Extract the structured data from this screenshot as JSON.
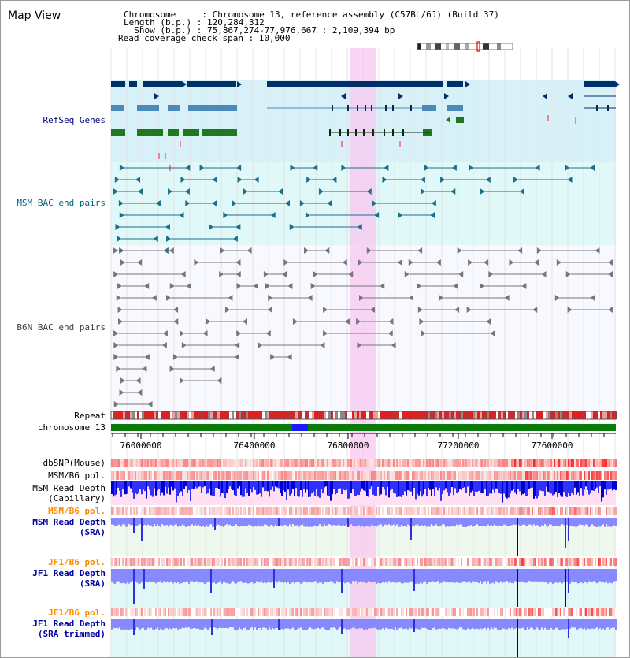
{
  "header": {
    "title": "Map View",
    "info_lines": [
      "Chromosome     : Chromosome 13, reference assembly (C57BL/6J) (Build 37)",
      "Length (b.p.) : 120,284,312",
      "  Show (b.p.) : 75,867,274-77,976,667 : 2,109,394 bp",
      "Read coverage check span : 10,000"
    ]
  },
  "tracks": {
    "refseq": "RefSeq Genes",
    "msm_bac": "MSM BAC end pairs",
    "b6n_bac": "B6N BAC end pairs",
    "repeat": "Repeat",
    "chromosome": "chromosome 13",
    "dbsnp": "dbSNP(Mouse)",
    "msm_b6_pol_1": "MSM/B6 pol.",
    "msm_depth_cap_1": "MSM Read Depth",
    "msm_depth_cap_2": "(Capillary)",
    "msm_b6_pol_2": "MSM/B6 pol.",
    "msm_depth_sra_1": "MSM Read Depth",
    "msm_depth_sra_2": "(SRA)",
    "jf1_b6_pol_1": "JF1/B6 pol.",
    "jf1_depth_sra_1": "JF1 Read Depth",
    "jf1_depth_sra_2": "(SRA)",
    "jf1_b6_pol_2": "JF1/B6 pol.",
    "jf1_depth_trim_1": "JF1 Read Depth",
    "jf1_depth_trim_2": "(SRA trimmed)"
  },
  "axis": {
    "ticks": [
      "76000000",
      "76400000",
      "76800000",
      "77200000",
      "77600000"
    ]
  },
  "colors": {
    "refseq_label": "#000080",
    "msm_bac_label": "#006080",
    "b6n_bac_label": "#404040",
    "pol_label": "#ff8c00",
    "depth_label": "#0000a0",
    "highlight": "#f8c8f0"
  }
}
